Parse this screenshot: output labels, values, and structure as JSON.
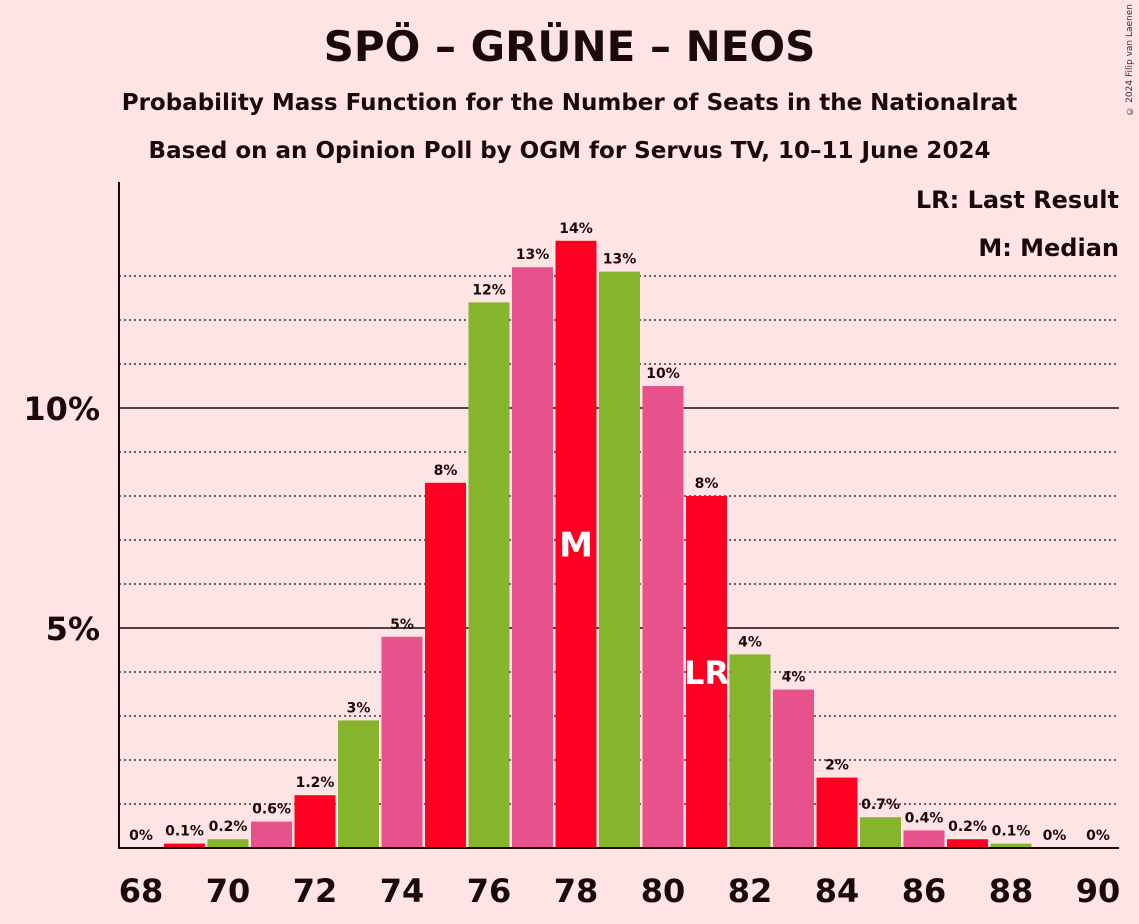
{
  "title": "SPÖ – GRÜNE – NEOS",
  "subtitle1": "Probability Mass Function for the Number of Seats in the Nationalrat",
  "subtitle2": "Based on an Opinion Poll by OGM for Servus TV, 10–11 June 2024",
  "copyright": "© 2024 Filip van Laenen",
  "legend": {
    "lr": "LR: Last Result",
    "m": "M: Median"
  },
  "colors": {
    "red": "#FF0022",
    "green": "#86B42C",
    "pink": "#E8528C",
    "background": "#FFE4E6"
  },
  "chart_data": {
    "type": "bar",
    "x": [
      68,
      69,
      70,
      71,
      72,
      73,
      74,
      75,
      76,
      77,
      78,
      79,
      80,
      81,
      82,
      83,
      84,
      85,
      86,
      87,
      88,
      89,
      90
    ],
    "values": [
      0,
      0.1,
      0.2,
      0.6,
      1.2,
      2.9,
      4.8,
      8.3,
      12.4,
      13.2,
      13.8,
      13.1,
      10.5,
      8.0,
      4.4,
      3.6,
      1.6,
      0.7,
      0.4,
      0.2,
      0.1,
      0,
      0
    ],
    "labels": [
      "0%",
      "0.1%",
      "0.2%",
      "0.6%",
      "1.2%",
      "3%",
      "5%",
      "8%",
      "12%",
      "13%",
      "14%",
      "13%",
      "10%",
      "8%",
      "4%",
      "4%",
      "2%",
      "0.7%",
      "0.4%",
      "0.2%",
      "0.1%",
      "0%",
      "0%"
    ],
    "bar_colors": [
      "red",
      "red",
      "green",
      "pink",
      "red",
      "green",
      "pink",
      "red",
      "green",
      "pink",
      "red",
      "green",
      "pink",
      "red",
      "green",
      "pink",
      "red",
      "green",
      "pink",
      "red",
      "green",
      "pink",
      "red"
    ],
    "median_x": 78,
    "median_label": "M",
    "last_result_x": 81,
    "last_result_label": "LR",
    "x_ticks": [
      "68",
      "70",
      "72",
      "74",
      "76",
      "78",
      "80",
      "82",
      "84",
      "86",
      "88",
      "90"
    ],
    "y_ticks": [
      {
        "value": 5,
        "label": "5%"
      },
      {
        "value": 10,
        "label": "10%"
      }
    ],
    "ylim": [
      0,
      15
    ],
    "grid": true
  }
}
